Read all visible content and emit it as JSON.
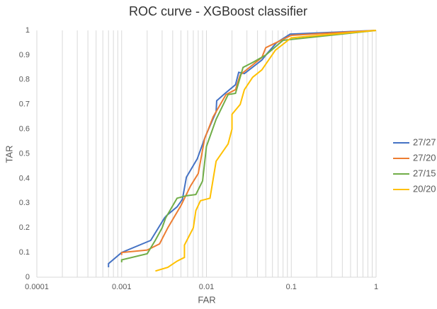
{
  "chart_data": {
    "type": "line",
    "title": "ROC curve - XGBoost classifier",
    "x_label": "FAR",
    "y_label": "TAR",
    "xscale": "log",
    "grid": true,
    "minor_grid": true,
    "legend": "right",
    "xlim": [
      0.0001,
      1
    ],
    "xticks": [
      0.0001,
      0.001,
      0.01,
      0.1,
      1
    ],
    "ylim": [
      0,
      1
    ],
    "yticks": [
      0,
      0.1,
      0.2,
      0.3,
      0.4,
      0.5,
      0.6,
      0.7,
      0.8,
      0.9,
      1
    ],
    "series": [
      {
        "name": "27/27",
        "color": "#4472c4",
        "x": [
          0.0007,
          0.0007,
          0.001,
          0.0022,
          0.0032,
          0.0034,
          0.0045,
          0.0052,
          0.0058,
          0.0078,
          0.0097,
          0.013,
          0.0132,
          0.0166,
          0.022,
          0.024,
          0.028,
          0.045,
          0.053,
          0.067,
          0.097,
          1
        ],
        "values": [
          0.04,
          0.055,
          0.1,
          0.149,
          0.24,
          0.25,
          0.285,
          0.315,
          0.405,
          0.48,
          0.57,
          0.67,
          0.715,
          0.745,
          0.78,
          0.83,
          0.825,
          0.88,
          0.91,
          0.95,
          0.985,
          1
        ]
      },
      {
        "name": "27/20",
        "color": "#ed7d31",
        "x": [
          0.001,
          0.001,
          0.002,
          0.0028,
          0.0035,
          0.005,
          0.0065,
          0.008,
          0.0095,
          0.012,
          0.017,
          0.022,
          0.025,
          0.045,
          0.05,
          0.1,
          1
        ],
        "values": [
          0.09,
          0.1,
          0.11,
          0.135,
          0.2,
          0.29,
          0.37,
          0.42,
          0.56,
          0.65,
          0.74,
          0.76,
          0.82,
          0.89,
          0.93,
          0.98,
          1
        ]
      },
      {
        "name": "27/15",
        "color": "#70ad47",
        "x": [
          0.001,
          0.001,
          0.002,
          0.0025,
          0.003,
          0.0033,
          0.0045,
          0.0058,
          0.0075,
          0.009,
          0.01,
          0.013,
          0.018,
          0.022,
          0.027,
          0.035,
          0.05,
          0.08,
          1
        ],
        "values": [
          0.06,
          0.07,
          0.095,
          0.15,
          0.2,
          0.24,
          0.32,
          0.33,
          0.335,
          0.39,
          0.53,
          0.64,
          0.74,
          0.745,
          0.85,
          0.87,
          0.9,
          0.96,
          1
        ]
      },
      {
        "name": "20/20",
        "color": "#ffc000",
        "x": [
          0.0025,
          0.0035,
          0.0045,
          0.0055,
          0.0055,
          0.007,
          0.0075,
          0.0085,
          0.011,
          0.013,
          0.018,
          0.02,
          0.02,
          0.025,
          0.028,
          0.035,
          0.045,
          0.065,
          0.1,
          1
        ],
        "values": [
          0.025,
          0.04,
          0.065,
          0.08,
          0.13,
          0.2,
          0.27,
          0.31,
          0.32,
          0.47,
          0.54,
          0.6,
          0.66,
          0.7,
          0.76,
          0.81,
          0.84,
          0.92,
          0.97,
          1
        ]
      }
    ]
  }
}
